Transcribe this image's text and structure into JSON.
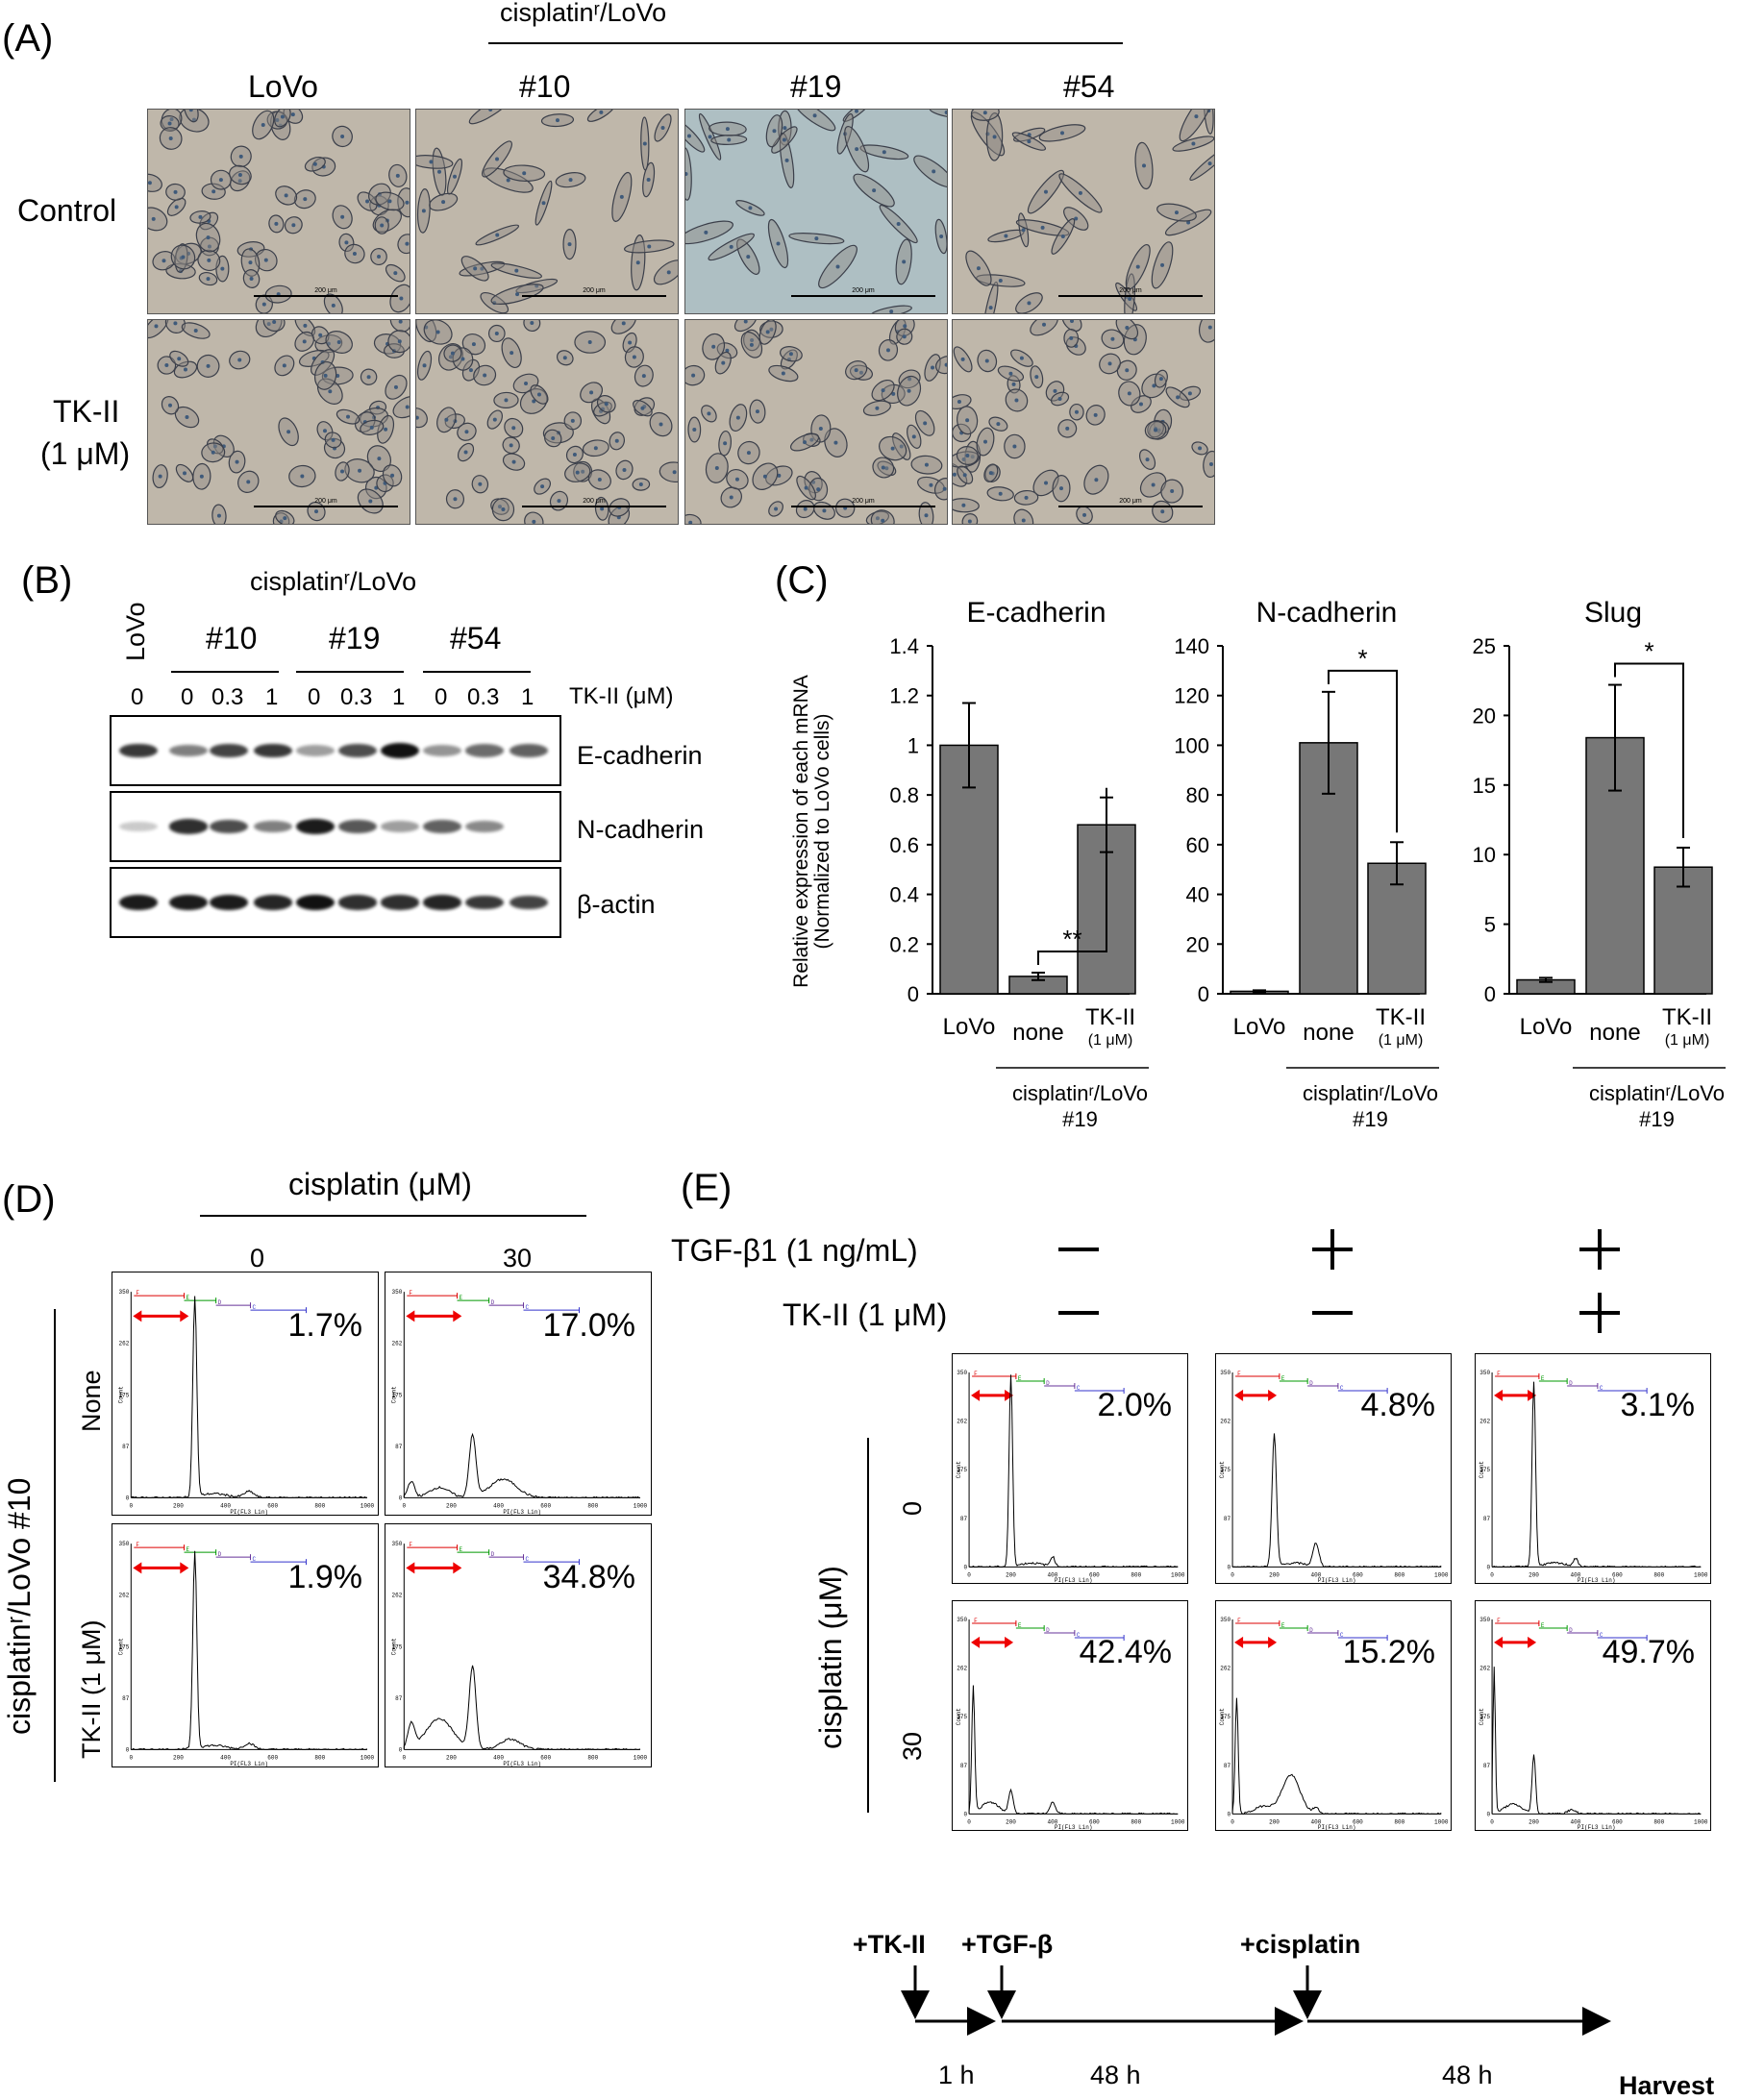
{
  "panelA": {
    "label": "(A)",
    "group_title": "cisplatinʳ/LoVo",
    "columns": [
      "LoVo",
      "#10",
      "#19",
      "#54"
    ],
    "rows": [
      "Control",
      "TK-II",
      "(1 μM)"
    ],
    "scale_text": "200 μm"
  },
  "panelB": {
    "label": "(B)",
    "side_label": "LoVo",
    "group_title": "cisplatinʳ/LoVo",
    "clones": [
      "#10",
      "#19",
      "#54"
    ],
    "lane_doses": [
      "0",
      "0",
      "0.3",
      "1",
      "0",
      "0.3",
      "1",
      "0",
      "0.3",
      "1"
    ],
    "dose_label": "TK-II (μM)",
    "blots": [
      "E-cadherin",
      "N-cadherin",
      "β-actin"
    ],
    "intensities": {
      "E-cadherin": [
        0.8,
        0.45,
        0.75,
        0.8,
        0.3,
        0.7,
        1.0,
        0.35,
        0.55,
        0.6
      ],
      "N-cadherin": [
        0.08,
        0.85,
        0.7,
        0.45,
        0.95,
        0.65,
        0.3,
        0.6,
        0.4,
        0.0
      ],
      "β-actin": [
        0.95,
        0.95,
        0.95,
        0.9,
        1.0,
        0.85,
        0.85,
        0.9,
        0.8,
        0.75
      ]
    }
  },
  "panelC": {
    "label": "(C)",
    "ylabel_line1": "Relative expression of each mRNA",
    "ylabel_line2": "(Normalized to LoVo cells)",
    "under_label": "cisplatinʳ/LoVo",
    "under_label2": "#19",
    "cat_small": "(1 μM)"
  },
  "chart_data": [
    {
      "type": "bar",
      "title": "E-cadherin",
      "categories": [
        "LoVo",
        "none",
        "TK-II"
      ],
      "values": [
        1.0,
        0.07,
        0.68
      ],
      "errors": [
        0.17,
        0.015,
        0.11
      ],
      "ylim": [
        0,
        1.4
      ],
      "ticks": [
        "0",
        "0.2",
        "0.4",
        "0.6",
        "0.8",
        "1",
        "1.2",
        "1.4"
      ],
      "significance": "**"
    },
    {
      "type": "bar",
      "title": "N-cadherin",
      "categories": [
        "LoVo",
        "none",
        "TK-II"
      ],
      "values": [
        1,
        101,
        52.5
      ],
      "errors": [
        0.4,
        20.5,
        8.5
      ],
      "ylim": [
        0,
        140
      ],
      "ticks": [
        "0",
        "20",
        "40",
        "60",
        "80",
        "100",
        "120",
        "140"
      ],
      "significance": "*"
    },
    {
      "type": "bar",
      "title": "Slug",
      "categories": [
        "LoVo",
        "none",
        "TK-II"
      ],
      "values": [
        1.0,
        18.4,
        9.1
      ],
      "errors": [
        0.15,
        3.8,
        1.4
      ],
      "ylim": [
        0,
        25
      ],
      "ticks": [
        "0",
        "5",
        "10",
        "15",
        "20",
        "25"
      ],
      "significance": "*"
    }
  ],
  "panelD": {
    "label": "(D)",
    "top_label": "cisplatin (μM)",
    "doses": [
      "0",
      "30"
    ],
    "side_label": "cisplatinʳ/LoVo #10",
    "row_labels": [
      "None",
      "TK-II (1 μM)"
    ],
    "percents": [
      "1.7%",
      "17.0%",
      "1.9%",
      "34.8%"
    ]
  },
  "panelE": {
    "label": "(E)",
    "tgf_label": "TGF-β1 (1 ng/mL)",
    "tk_label": "TK-II (1 μM)",
    "side_label": "cisplatin (μM)",
    "row_doses": [
      "0",
      "30"
    ],
    "percents": [
      "2.0%",
      "4.8%",
      "3.1%",
      "42.4%",
      "15.2%",
      "49.7%"
    ],
    "timeline": {
      "steps": [
        "+TK-II",
        "+TGF-β",
        "+cisplatin"
      ],
      "end": "Harvest",
      "durations": [
        "1 h",
        "48 h",
        "48 h"
      ]
    }
  },
  "facs_axis": {
    "x_ticks": [
      "0",
      "200",
      "400",
      "600",
      "800",
      "1000"
    ],
    "y_ticks": [
      "0",
      "87",
      "175",
      "262",
      "350"
    ],
    "xlabel": "PI(FL3 Lin)",
    "ylabel": "Count",
    "gates": [
      "F",
      "E",
      "D",
      "C"
    ]
  }
}
